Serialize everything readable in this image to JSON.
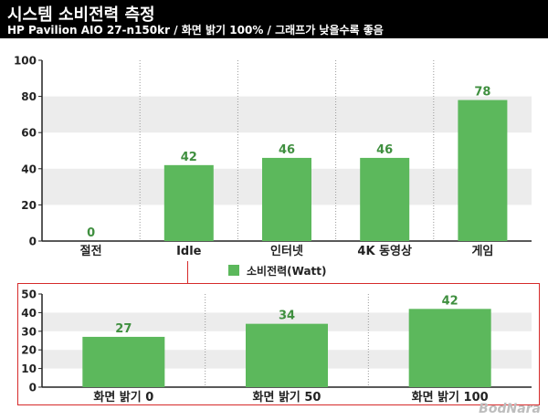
{
  "header": {
    "title": "시스템 소비전력 측정",
    "subtitle": "HP Pavilion AIO 27-n150kr  / 화면 밝기 100% / 그래프가 낮을수록 좋음"
  },
  "legend": {
    "label": "소비전력(Watt)"
  },
  "watermark": "BodNara",
  "colors": {
    "bar": "#5cb85c",
    "label": "#3f8f3f",
    "band": "#ececec",
    "highlight": "#d62a2a"
  },
  "chart_data": [
    {
      "type": "bar",
      "categories": [
        "절전",
        "Idle",
        "인터넷",
        "4K 동영상",
        "게임"
      ],
      "values": [
        0,
        42,
        46,
        46,
        78
      ],
      "ylim": [
        0,
        100
      ],
      "yticks": [
        0,
        20,
        40,
        60,
        80,
        100
      ],
      "grid": true
    },
    {
      "type": "bar",
      "categories": [
        "화면 밝기 0",
        "화면 밝기 50",
        "화면 밝기 100"
      ],
      "values": [
        27,
        34,
        42
      ],
      "ylim": [
        0,
        50
      ],
      "yticks": [
        0,
        10,
        20,
        30,
        40,
        50
      ],
      "grid": true
    }
  ]
}
